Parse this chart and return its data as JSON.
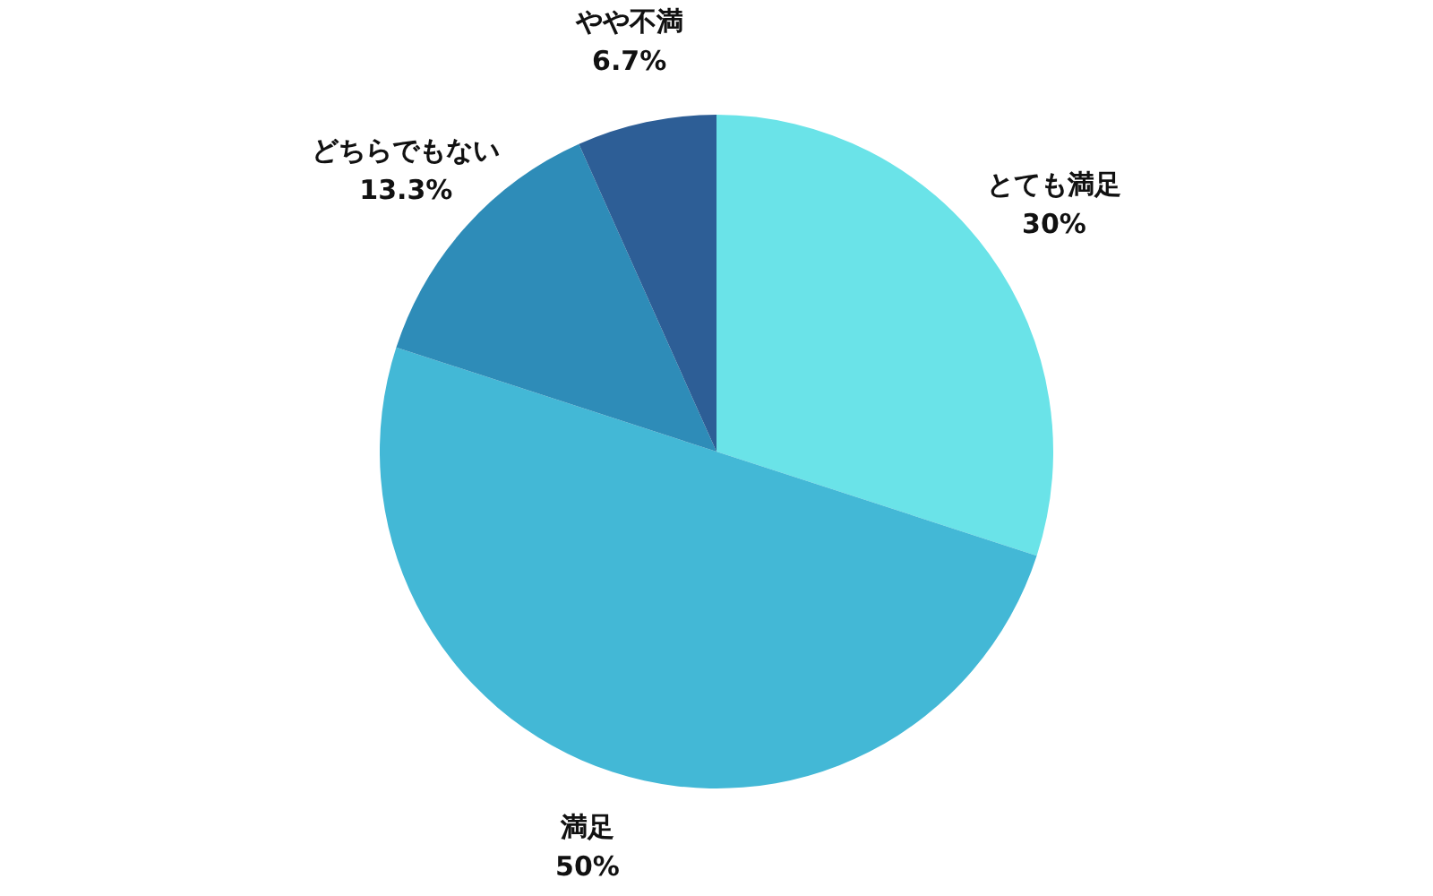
{
  "chart_data": {
    "type": "pie",
    "categories": [
      "とても満足",
      "満足",
      "どちらでもない",
      "やや不満"
    ],
    "values": [
      30,
      50,
      13.3,
      6.7
    ],
    "value_labels": [
      "30%",
      "50%",
      "13.3%",
      "6.7%"
    ],
    "colors": [
      "#6ae3e8",
      "#43b8d6",
      "#2e8cb8",
      "#2d5e96"
    ],
    "legend": false
  }
}
